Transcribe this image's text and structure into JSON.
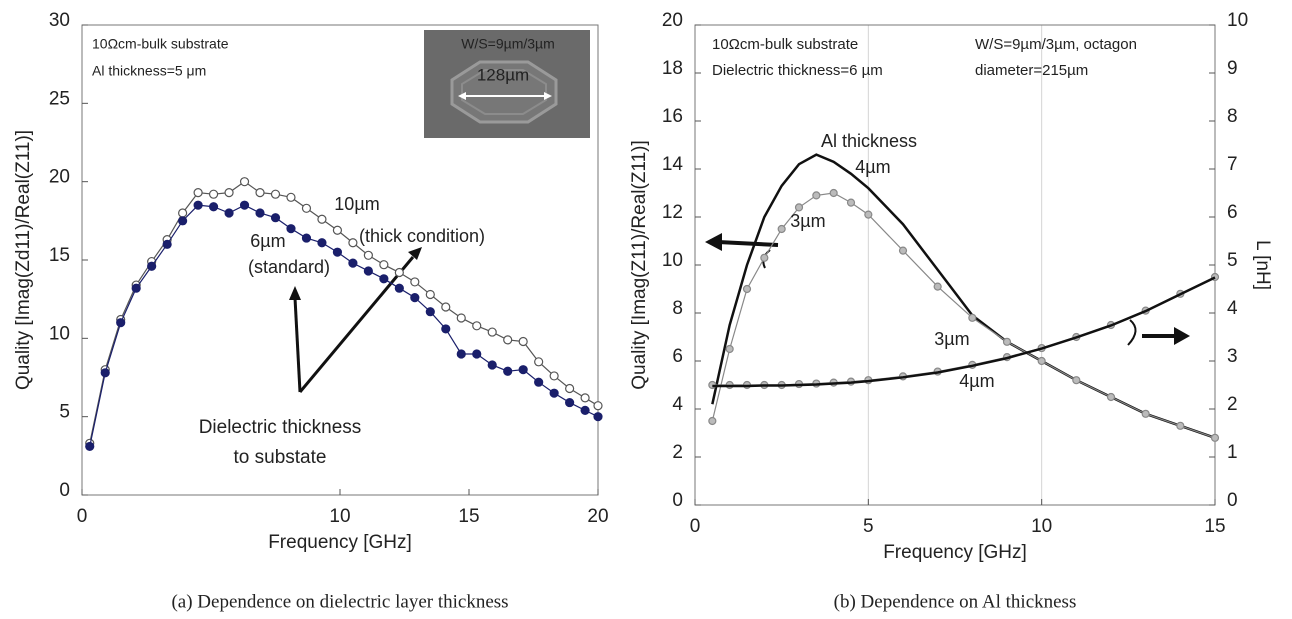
{
  "chart_data": [
    {
      "type": "line",
      "xlabel": "Frequency [GHz]",
      "ylabel": "Quality [Imag(Zd11)/Real(Z11)]",
      "caption": "(a) Dependence on dielectric layer thickness",
      "annotations": [
        "10Ωcm-bulk substrate",
        "Al thickness=5 μm",
        "W/S=9µm/3µm",
        "128µm",
        "(thick condition)",
        "(standard)",
        "Dielectric thickness",
        "to substate"
      ],
      "x": [
        0.3,
        0.9,
        1.5,
        2.1,
        2.7,
        3.3,
        3.9,
        4.5,
        5.1,
        5.7,
        6.3,
        6.9,
        7.5,
        8.1,
        8.7,
        9.3,
        9.9,
        10.5,
        11.1,
        11.7,
        12.3,
        12.9,
        13.5,
        14.1,
        14.7,
        15.3,
        15.9,
        16.5,
        17.1,
        17.7,
        18.3,
        18.9,
        19.5,
        20
      ],
      "series": [
        {
          "name": "10µm",
          "color": "#555555",
          "marker": "open",
          "values": [
            3.3,
            8.0,
            11.2,
            13.4,
            14.9,
            16.3,
            18.0,
            19.3,
            19.2,
            19.3,
            20.0,
            19.3,
            19.2,
            19.0,
            18.3,
            17.6,
            16.9,
            16.1,
            15.3,
            14.7,
            14.2,
            13.6,
            12.8,
            12.0,
            11.3,
            10.8,
            10.4,
            9.9,
            9.8,
            8.5,
            7.6,
            6.8,
            6.2,
            5.7
          ]
        },
        {
          "name": "6µm",
          "color": "#1a1f6b",
          "marker": "filled",
          "values": [
            3.1,
            7.8,
            11.0,
            13.2,
            14.6,
            16.0,
            17.5,
            18.5,
            18.4,
            18.0,
            18.5,
            18.0,
            17.7,
            17.0,
            16.4,
            16.1,
            15.5,
            14.8,
            14.3,
            13.8,
            13.2,
            12.6,
            11.7,
            10.6,
            9.0,
            9.0,
            8.3,
            7.9,
            8.0,
            7.2,
            6.5,
            5.9,
            5.4,
            5.0
          ]
        }
      ],
      "xlim": [
        0,
        20
      ],
      "xticks": [
        0,
        10,
        15,
        20
      ],
      "ylim": [
        0,
        30
      ],
      "yticks": [
        0,
        5,
        10,
        15,
        20,
        25,
        30
      ],
      "grid": "none"
    },
    {
      "type": "line",
      "xlabel": "Frequency  [GHz]",
      "ylabel": "Quality [Imag(Z11)/Real(Z11)]",
      "y2label": "L [nH]",
      "caption": "(b) Dependence on Al thickness",
      "annotations": [
        "10Ωcm-bulk substrate",
        "Dielectric thickness=6 µm",
        "W/S=9µm/3µm, octagon",
        "diameter=215µm",
        "Al thickness"
      ],
      "x": [
        0.5,
        1,
        1.5,
        2,
        2.5,
        3,
        3.5,
        4,
        4.5,
        5,
        6,
        7,
        8,
        9,
        10,
        11,
        12,
        13,
        14,
        15
      ],
      "series": [
        {
          "name": "4µm",
          "color": "#111111",
          "marker": "none",
          "values": [
            4.2,
            7.5,
            10.0,
            12.0,
            13.3,
            14.2,
            14.6,
            14.3,
            13.8,
            13.2,
            11.7,
            9.8,
            7.9,
            6.8,
            6.0,
            5.2,
            4.5,
            3.8,
            3.3,
            2.8
          ]
        },
        {
          "name": "3µm",
          "color": "#888888",
          "marker": "gray",
          "values": [
            3.5,
            6.5,
            9.0,
            10.3,
            11.5,
            12.4,
            12.9,
            13.0,
            12.6,
            12.1,
            10.6,
            9.1,
            7.8,
            6.8,
            6.0,
            5.2,
            4.5,
            3.8,
            3.3,
            2.8
          ]
        },
        {
          "name": "3µm",
          "color": "#888888",
          "marker": "gray",
          "axis": "y2",
          "values": [
            2.5,
            2.5,
            2.5,
            2.5,
            2.5,
            2.52,
            2.53,
            2.55,
            2.57,
            2.6,
            2.68,
            2.78,
            2.92,
            3.08,
            3.27,
            3.5,
            3.75,
            4.05,
            4.4,
            4.75
          ]
        },
        {
          "name": "4µm",
          "color": "#111111",
          "marker": "none",
          "axis": "y2",
          "values": [
            2.48,
            2.48,
            2.48,
            2.49,
            2.49,
            2.5,
            2.51,
            2.53,
            2.55,
            2.58,
            2.66,
            2.76,
            2.9,
            3.06,
            3.26,
            3.49,
            3.74,
            4.04,
            4.39,
            4.74
          ]
        }
      ],
      "xlim": [
        0,
        15
      ],
      "xticks": [
        0,
        5,
        10,
        15
      ],
      "ylim": [
        0,
        20
      ],
      "yticks": [
        0,
        2,
        4,
        6,
        8,
        10,
        12,
        14,
        16,
        18,
        20
      ],
      "y2lim": [
        0,
        10
      ],
      "y2ticks": [
        0,
        1,
        2,
        3,
        4,
        5,
        6,
        7,
        8,
        9,
        10
      ],
      "grid": "x"
    }
  ]
}
